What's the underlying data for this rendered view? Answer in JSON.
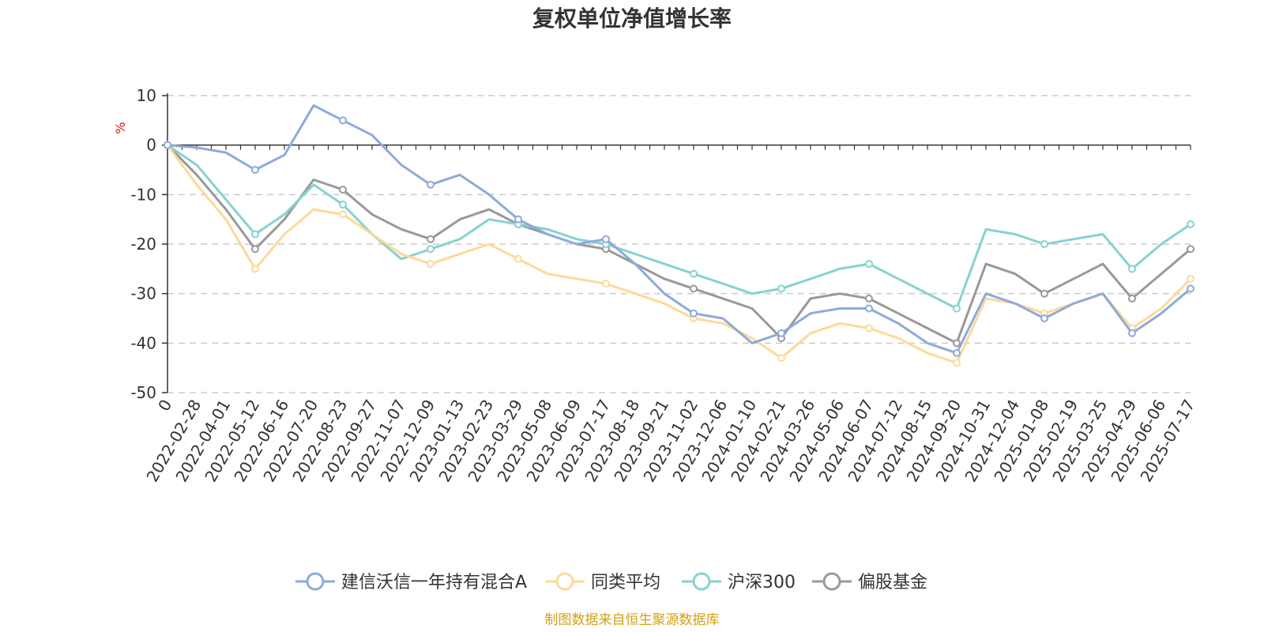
{
  "chart_data": {
    "type": "line",
    "title": "复权单位净值增长率",
    "ylabel": "%",
    "ylim": [
      -50,
      10
    ],
    "yticks": [
      "10",
      "0",
      "-10",
      "-20",
      "-30",
      "-40",
      "-50"
    ],
    "grid": true,
    "legend_position": "bottom",
    "x": [
      "0",
      "2022-02-28",
      "2022-04-01",
      "2022-05-12",
      "2022-06-16",
      "2022-07-20",
      "2022-08-23",
      "2022-09-27",
      "2022-11-07",
      "2022-12-09",
      "2023-01-13",
      "2023-02-23",
      "2023-03-29",
      "2023-05-08",
      "2023-06-09",
      "2023-07-17",
      "2023-08-18",
      "2023-09-21",
      "2023-11-02",
      "2023-12-06",
      "2024-01-10",
      "2024-02-21",
      "2024-03-26",
      "2024-05-06",
      "2024-06-07",
      "2024-07-12",
      "2024-08-15",
      "2024-09-20",
      "2024-10-31",
      "2024-12-04",
      "2025-01-08",
      "2025-02-19",
      "2025-03-25",
      "2025-04-29",
      "2025-06-06",
      "2025-07-17"
    ],
    "series": [
      {
        "name": "建信沃信一年持有混合A",
        "color": "#8eaadb",
        "values": [
          0,
          -0.5,
          -1.5,
          -5,
          -2,
          8,
          5,
          2,
          -4,
          -8,
          -6,
          -10,
          -15,
          -18,
          -20,
          -19,
          -24,
          -30,
          -34,
          -35,
          -40,
          -38,
          -34,
          -33,
          -33,
          -36,
          -40,
          -42,
          -30,
          -32,
          -35,
          -32,
          -30,
          -38,
          -34,
          -29
        ]
      },
      {
        "name": "同类平均",
        "color": "#fdd999",
        "values": [
          0,
          -8,
          -15,
          -25,
          -18,
          -13,
          -14,
          -18,
          -22,
          -24,
          -22,
          -20,
          -23,
          -26,
          -27,
          -28,
          -30,
          -32,
          -35,
          -36,
          -39,
          -43,
          -38,
          -36,
          -37,
          -39,
          -42,
          -44,
          -31,
          -32,
          -34,
          -32,
          -30,
          -37,
          -33,
          -27
        ]
      },
      {
        "name": "沪深300",
        "color": "#86d2d1",
        "values": [
          0,
          -4,
          -11,
          -18,
          -14,
          -8,
          -12,
          -18,
          -23,
          -21,
          -19,
          -15,
          -16,
          -17,
          -19,
          -20,
          -22,
          -24,
          -26,
          -28,
          -30,
          -29,
          -27,
          -25,
          -24,
          -27,
          -30,
          -33,
          -17,
          -18,
          -20,
          -19,
          -18,
          -25,
          -20,
          -16
        ]
      },
      {
        "name": "偏股基金",
        "color": "#999999",
        "values": [
          0,
          -6,
          -13,
          -21,
          -15,
          -7,
          -9,
          -14,
          -17,
          -19,
          -15,
          -13,
          -16,
          -18,
          -20,
          -21,
          -24,
          -27,
          -29,
          -31,
          -33,
          -39,
          -31,
          -30,
          -31,
          -34,
          -37,
          -40,
          -24,
          -26,
          -30,
          -27,
          -24,
          -31,
          -26,
          -21
        ]
      }
    ]
  },
  "source_note": "制图数据来自恒生聚源数据库"
}
